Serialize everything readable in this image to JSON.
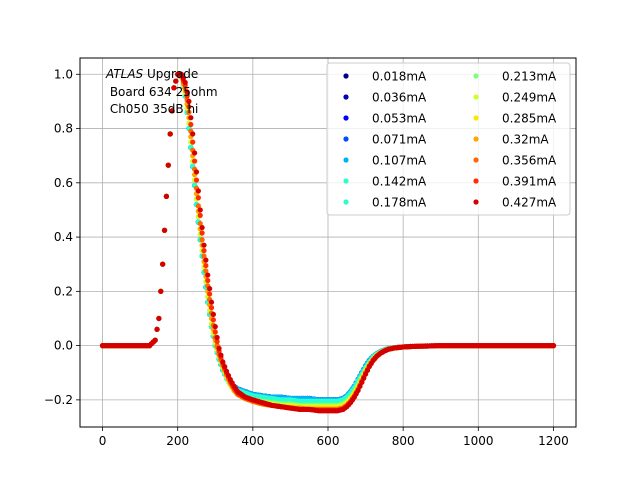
{
  "chart_data": {
    "type": "scatter",
    "title": "",
    "xlabel": "",
    "ylabel": "",
    "xlim": [
      -60,
      1260
    ],
    "ylim": [
      -0.3,
      1.06
    ],
    "grid": true,
    "legend_placement": "top-right",
    "legend_columns": 2,
    "annotation": {
      "italic": "ATLAS",
      "line1_rest": " Upgrade",
      "line2": " Board 634 25ohm",
      "line3": " Ch050 35dB hi"
    },
    "x_ticks": [
      0,
      200,
      400,
      600,
      800,
      1000,
      1200
    ],
    "y_ticks": [
      -0.2,
      0.0,
      0.2,
      0.4,
      0.6,
      0.8,
      1.0
    ],
    "x_tick_labels": [
      "0",
      "200",
      "400",
      "600",
      "800",
      "1000",
      "1200"
    ],
    "y_tick_labels": [
      "−0.2",
      "0.0",
      "0.2",
      "0.4",
      "0.6",
      "0.8",
      "1.0"
    ],
    "x": [
      0,
      25,
      50,
      75,
      100,
      125,
      140,
      150,
      160,
      170,
      180,
      190,
      200,
      210,
      220,
      230,
      240,
      250,
      260,
      270,
      280,
      290,
      300,
      310,
      320,
      330,
      340,
      350,
      360,
      380,
      400,
      425,
      450,
      475,
      500,
      525,
      550,
      575,
      600,
      625,
      640,
      650,
      660,
      670,
      680,
      690,
      700,
      710,
      720,
      730,
      740,
      750,
      760,
      775,
      800,
      825,
      850,
      875,
      900,
      950,
      1000,
      1050,
      1100,
      1150,
      1200
    ],
    "series": [
      {
        "name": "0.018mA",
        "color": "#00007f",
        "values": [
          0,
          0,
          0,
          0,
          0,
          0,
          0.02,
          0.1,
          0.3,
          0.55,
          0.78,
          0.95,
          1.0,
          0.99,
          0.92,
          0.8,
          0.66,
          0.52,
          0.39,
          0.27,
          0.16,
          0.07,
          0,
          -0.05,
          -0.09,
          -0.12,
          -0.14,
          -0.15,
          -0.16,
          -0.17,
          -0.18,
          -0.185,
          -0.19,
          -0.19,
          -0.195,
          -0.195,
          -0.195,
          -0.2,
          -0.2,
          -0.2,
          -0.195,
          -0.185,
          -0.17,
          -0.15,
          -0.125,
          -0.1,
          -0.075,
          -0.055,
          -0.04,
          -0.03,
          -0.022,
          -0.016,
          -0.012,
          -0.008,
          -0.005,
          -0.003,
          -0.002,
          -0.001,
          0,
          0,
          0,
          0,
          0,
          0,
          0
        ]
      },
      {
        "name": "0.036mA",
        "color": "#0000b4",
        "values": [
          0,
          0,
          0,
          0,
          0,
          0,
          0.02,
          0.1,
          0.3,
          0.55,
          0.78,
          0.95,
          1.0,
          0.99,
          0.92,
          0.8,
          0.66,
          0.52,
          0.39,
          0.27,
          0.16,
          0.07,
          0,
          -0.05,
          -0.09,
          -0.12,
          -0.14,
          -0.15,
          -0.16,
          -0.17,
          -0.18,
          -0.185,
          -0.19,
          -0.19,
          -0.195,
          -0.195,
          -0.195,
          -0.2,
          -0.2,
          -0.2,
          -0.195,
          -0.185,
          -0.17,
          -0.15,
          -0.125,
          -0.1,
          -0.075,
          -0.055,
          -0.04,
          -0.03,
          -0.022,
          -0.016,
          -0.012,
          -0.008,
          -0.005,
          -0.003,
          -0.002,
          -0.001,
          0,
          0,
          0,
          0,
          0,
          0,
          0
        ]
      },
      {
        "name": "0.053mA",
        "color": "#0000f1",
        "values": [
          0,
          0,
          0,
          0,
          0,
          0,
          0.02,
          0.1,
          0.3,
          0.55,
          0.78,
          0.95,
          1.0,
          0.99,
          0.92,
          0.8,
          0.66,
          0.52,
          0.39,
          0.27,
          0.16,
          0.07,
          0,
          -0.05,
          -0.09,
          -0.12,
          -0.14,
          -0.15,
          -0.16,
          -0.17,
          -0.18,
          -0.185,
          -0.19,
          -0.19,
          -0.195,
          -0.195,
          -0.195,
          -0.2,
          -0.2,
          -0.2,
          -0.195,
          -0.185,
          -0.17,
          -0.15,
          -0.125,
          -0.1,
          -0.075,
          -0.055,
          -0.04,
          -0.03,
          -0.022,
          -0.016,
          -0.012,
          -0.008,
          -0.005,
          -0.003,
          -0.002,
          -0.001,
          0,
          0,
          0,
          0,
          0,
          0,
          0
        ]
      },
      {
        "name": "0.071mA",
        "color": "#004cff",
        "values": [
          0,
          0,
          0,
          0,
          0,
          0,
          0.02,
          0.1,
          0.3,
          0.55,
          0.78,
          0.95,
          1.0,
          0.99,
          0.92,
          0.8,
          0.66,
          0.52,
          0.39,
          0.27,
          0.16,
          0.07,
          0,
          -0.05,
          -0.09,
          -0.12,
          -0.14,
          -0.15,
          -0.16,
          -0.17,
          -0.18,
          -0.185,
          -0.19,
          -0.19,
          -0.195,
          -0.195,
          -0.195,
          -0.2,
          -0.2,
          -0.2,
          -0.195,
          -0.185,
          -0.17,
          -0.15,
          -0.125,
          -0.1,
          -0.075,
          -0.055,
          -0.04,
          -0.03,
          -0.022,
          -0.016,
          -0.012,
          -0.008,
          -0.005,
          -0.003,
          -0.002,
          -0.001,
          0,
          0,
          0,
          0,
          0,
          0,
          0
        ]
      },
      {
        "name": "0.107mA",
        "color": "#00b0ff",
        "values": [
          0,
          0,
          0,
          0,
          0,
          0,
          0.02,
          0.1,
          0.3,
          0.55,
          0.78,
          0.95,
          1.0,
          0.99,
          0.92,
          0.8,
          0.66,
          0.52,
          0.39,
          0.27,
          0.16,
          0.07,
          0,
          -0.05,
          -0.09,
          -0.12,
          -0.14,
          -0.15,
          -0.16,
          -0.17,
          -0.18,
          -0.185,
          -0.19,
          -0.19,
          -0.195,
          -0.195,
          -0.195,
          -0.2,
          -0.2,
          -0.2,
          -0.195,
          -0.185,
          -0.17,
          -0.15,
          -0.125,
          -0.1,
          -0.075,
          -0.055,
          -0.04,
          -0.03,
          -0.022,
          -0.016,
          -0.012,
          -0.008,
          -0.005,
          -0.003,
          -0.002,
          -0.001,
          0,
          0,
          0,
          0,
          0,
          0,
          0
        ]
      },
      {
        "name": "0.142mA",
        "color": "#29ffce",
        "values": [
          0,
          0,
          0,
          0,
          0,
          0,
          0.02,
          0.1,
          0.3,
          0.55,
          0.78,
          0.95,
          1.0,
          0.99,
          0.92,
          0.8,
          0.66,
          0.52,
          0.39,
          0.27,
          0.16,
          0.07,
          0,
          -0.05,
          -0.09,
          -0.12,
          -0.14,
          -0.155,
          -0.165,
          -0.175,
          -0.185,
          -0.19,
          -0.195,
          -0.2,
          -0.2,
          -0.205,
          -0.205,
          -0.205,
          -0.205,
          -0.205,
          -0.2,
          -0.19,
          -0.175,
          -0.155,
          -0.13,
          -0.105,
          -0.08,
          -0.06,
          -0.042,
          -0.031,
          -0.023,
          -0.017,
          -0.012,
          -0.008,
          -0.005,
          -0.003,
          -0.002,
          -0.001,
          0,
          0,
          0,
          0,
          0,
          0,
          0
        ]
      },
      {
        "name": "0.178mA",
        "color": "#29ffce",
        "values": [
          0,
          0,
          0,
          0,
          0,
          0,
          0.02,
          0.1,
          0.3,
          0.55,
          0.78,
          0.95,
          1.0,
          0.99,
          0.92,
          0.8,
          0.66,
          0.52,
          0.39,
          0.27,
          0.16,
          0.07,
          0,
          -0.05,
          -0.09,
          -0.12,
          -0.145,
          -0.16,
          -0.17,
          -0.18,
          -0.19,
          -0.195,
          -0.2,
          -0.205,
          -0.205,
          -0.21,
          -0.21,
          -0.21,
          -0.21,
          -0.21,
          -0.205,
          -0.195,
          -0.18,
          -0.16,
          -0.135,
          -0.11,
          -0.085,
          -0.063,
          -0.045,
          -0.033,
          -0.024,
          -0.018,
          -0.013,
          -0.009,
          -0.005,
          -0.003,
          -0.002,
          -0.001,
          0,
          0,
          0,
          0,
          0,
          0,
          0
        ]
      },
      {
        "name": "0.213mA",
        "color": "#7dff7a",
        "values": [
          0,
          0,
          0,
          0,
          0,
          0,
          0.02,
          0.1,
          0.3,
          0.55,
          0.78,
          0.95,
          1.0,
          0.99,
          0.93,
          0.82,
          0.68,
          0.54,
          0.41,
          0.29,
          0.18,
          0.08,
          0.01,
          -0.04,
          -0.08,
          -0.115,
          -0.145,
          -0.165,
          -0.18,
          -0.19,
          -0.2,
          -0.205,
          -0.21,
          -0.215,
          -0.215,
          -0.22,
          -0.22,
          -0.22,
          -0.22,
          -0.22,
          -0.215,
          -0.205,
          -0.19,
          -0.17,
          -0.145,
          -0.118,
          -0.09,
          -0.067,
          -0.048,
          -0.035,
          -0.025,
          -0.018,
          -0.013,
          -0.009,
          -0.005,
          -0.003,
          -0.002,
          -0.001,
          0,
          0,
          0,
          0,
          0,
          0,
          0
        ]
      },
      {
        "name": "0.249mA",
        "color": "#ceff29",
        "values": [
          0,
          0,
          0,
          0,
          0,
          0,
          0.02,
          0.1,
          0.3,
          0.55,
          0.78,
          0.95,
          1.0,
          0.99,
          0.93,
          0.82,
          0.68,
          0.54,
          0.41,
          0.29,
          0.18,
          0.08,
          0.01,
          -0.04,
          -0.08,
          -0.115,
          -0.145,
          -0.165,
          -0.18,
          -0.195,
          -0.205,
          -0.21,
          -0.215,
          -0.22,
          -0.22,
          -0.225,
          -0.225,
          -0.225,
          -0.225,
          -0.225,
          -0.22,
          -0.21,
          -0.195,
          -0.175,
          -0.15,
          -0.12,
          -0.093,
          -0.069,
          -0.05,
          -0.036,
          -0.026,
          -0.019,
          -0.013,
          -0.009,
          -0.005,
          -0.003,
          -0.002,
          -0.001,
          0,
          0,
          0,
          0,
          0,
          0,
          0
        ]
      },
      {
        "name": "0.285mA",
        "color": "#ffe600",
        "values": [
          0,
          0,
          0,
          0,
          0,
          0,
          0.02,
          0.1,
          0.3,
          0.55,
          0.78,
          0.95,
          1.0,
          0.99,
          0.94,
          0.84,
          0.7,
          0.56,
          0.43,
          0.31,
          0.2,
          0.1,
          0.02,
          -0.035,
          -0.075,
          -0.11,
          -0.14,
          -0.165,
          -0.18,
          -0.195,
          -0.205,
          -0.215,
          -0.22,
          -0.225,
          -0.225,
          -0.23,
          -0.23,
          -0.23,
          -0.23,
          -0.23,
          -0.225,
          -0.215,
          -0.2,
          -0.18,
          -0.155,
          -0.125,
          -0.096,
          -0.071,
          -0.051,
          -0.037,
          -0.027,
          -0.019,
          -0.014,
          -0.009,
          -0.005,
          -0.003,
          -0.002,
          -0.001,
          0,
          0,
          0,
          0,
          0,
          0,
          0
        ]
      },
      {
        "name": "0.32mA",
        "color": "#ffa400",
        "values": [
          0,
          0,
          0,
          0,
          0,
          0,
          0.02,
          0.1,
          0.3,
          0.55,
          0.78,
          0.95,
          1.0,
          0.99,
          0.94,
          0.84,
          0.7,
          0.56,
          0.43,
          0.31,
          0.2,
          0.1,
          0.02,
          -0.035,
          -0.075,
          -0.11,
          -0.14,
          -0.165,
          -0.18,
          -0.195,
          -0.205,
          -0.215,
          -0.22,
          -0.225,
          -0.23,
          -0.23,
          -0.235,
          -0.235,
          -0.235,
          -0.235,
          -0.23,
          -0.22,
          -0.205,
          -0.185,
          -0.16,
          -0.13,
          -0.1,
          -0.074,
          -0.053,
          -0.038,
          -0.027,
          -0.02,
          -0.014,
          -0.009,
          -0.005,
          -0.003,
          -0.002,
          -0.001,
          0,
          0,
          0,
          0,
          0,
          0,
          0
        ]
      },
      {
        "name": "0.356mA",
        "color": "#ff6800",
        "values": [
          0,
          0,
          0,
          0,
          0,
          0,
          0.02,
          0.1,
          0.3,
          0.55,
          0.78,
          0.95,
          1.0,
          0.995,
          0.95,
          0.86,
          0.72,
          0.58,
          0.45,
          0.33,
          0.22,
          0.12,
          0.03,
          -0.03,
          -0.07,
          -0.105,
          -0.135,
          -0.16,
          -0.18,
          -0.195,
          -0.205,
          -0.215,
          -0.22,
          -0.225,
          -0.23,
          -0.235,
          -0.235,
          -0.235,
          -0.235,
          -0.235,
          -0.23,
          -0.22,
          -0.205,
          -0.185,
          -0.16,
          -0.13,
          -0.1,
          -0.074,
          -0.053,
          -0.038,
          -0.027,
          -0.02,
          -0.014,
          -0.009,
          -0.005,
          -0.003,
          -0.002,
          -0.001,
          0,
          0,
          0,
          0,
          0,
          0,
          0
        ]
      },
      {
        "name": "0.391mA",
        "color": "#ff2d00",
        "values": [
          0,
          0,
          0,
          0,
          0,
          0,
          0.02,
          0.1,
          0.3,
          0.55,
          0.78,
          0.95,
          1.0,
          0.995,
          0.96,
          0.88,
          0.75,
          0.61,
          0.48,
          0.35,
          0.24,
          0.14,
          0.05,
          -0.02,
          -0.065,
          -0.1,
          -0.13,
          -0.155,
          -0.175,
          -0.19,
          -0.2,
          -0.21,
          -0.22,
          -0.225,
          -0.23,
          -0.235,
          -0.235,
          -0.24,
          -0.24,
          -0.24,
          -0.235,
          -0.225,
          -0.21,
          -0.19,
          -0.165,
          -0.135,
          -0.105,
          -0.077,
          -0.055,
          -0.039,
          -0.028,
          -0.02,
          -0.014,
          -0.009,
          -0.005,
          -0.003,
          -0.002,
          -0.001,
          0,
          0,
          0,
          0,
          0,
          0,
          0
        ]
      },
      {
        "name": "0.427mA",
        "color": "#d40000",
        "values": [
          0,
          0,
          0,
          0,
          0,
          0,
          0.02,
          0.1,
          0.3,
          0.55,
          0.78,
          0.95,
          1.0,
          1.0,
          0.97,
          0.9,
          0.78,
          0.64,
          0.5,
          0.37,
          0.26,
          0.16,
          0.07,
          -0.01,
          -0.06,
          -0.095,
          -0.125,
          -0.15,
          -0.17,
          -0.19,
          -0.2,
          -0.21,
          -0.22,
          -0.225,
          -0.23,
          -0.235,
          -0.235,
          -0.24,
          -0.24,
          -0.24,
          -0.235,
          -0.225,
          -0.21,
          -0.19,
          -0.165,
          -0.135,
          -0.105,
          -0.077,
          -0.055,
          -0.039,
          -0.028,
          -0.02,
          -0.014,
          -0.009,
          -0.005,
          -0.003,
          -0.002,
          -0.001,
          0,
          0,
          0,
          0,
          0,
          0,
          0
        ]
      }
    ]
  }
}
